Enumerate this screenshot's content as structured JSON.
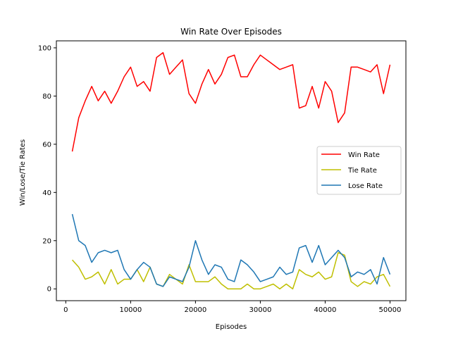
{
  "chart_data": {
    "type": "line",
    "title": "Win Rate Over Episodes",
    "xlabel": "Episodes",
    "ylabel": "Win/Lose/Tie Rates",
    "xlim": [
      -1450,
      52450
    ],
    "ylim": [
      -4.9,
      102.9
    ],
    "xticks": [
      0,
      10000,
      20000,
      30000,
      40000,
      50000
    ],
    "yticks": [
      0,
      20,
      40,
      60,
      80,
      100
    ],
    "grid": false,
    "legend_position": "center-right",
    "x": [
      1000,
      2000,
      3000,
      4000,
      5000,
      6000,
      7000,
      8000,
      9000,
      10000,
      11000,
      12000,
      13000,
      14000,
      15000,
      16000,
      17000,
      18000,
      19000,
      20000,
      21000,
      22000,
      23000,
      24000,
      25000,
      26000,
      27000,
      28000,
      29000,
      30000,
      31000,
      32000,
      33000,
      34000,
      35000,
      36000,
      37000,
      38000,
      39000,
      40000,
      41000,
      42000,
      43000,
      44000,
      45000,
      46000,
      47000,
      48000,
      49000,
      50000
    ],
    "series": [
      {
        "name": "Win Rate",
        "color": "#ff0000",
        "values": [
          57,
          71,
          78,
          84,
          78,
          82,
          77,
          82,
          88,
          92,
          84,
          86,
          82,
          96,
          98,
          89,
          92,
          95,
          81,
          77,
          85,
          91,
          85,
          89,
          96,
          97,
          88,
          88,
          93,
          97,
          95,
          93,
          91,
          92,
          93,
          75,
          76,
          84,
          75,
          86,
          82,
          69,
          73,
          92,
          92,
          91,
          90,
          93,
          81,
          93
        ]
      },
      {
        "name": "Tie Rate",
        "color": "#bfbf00",
        "values": [
          12,
          9,
          4,
          5,
          7,
          2,
          8,
          2,
          4,
          4,
          8,
          3,
          9,
          2,
          1,
          6,
          4,
          2,
          10,
          3,
          3,
          3,
          5,
          2,
          0,
          0,
          0,
          2,
          0,
          0,
          1,
          2,
          0,
          2,
          0,
          8,
          6,
          5,
          7,
          4,
          5,
          15,
          14,
          3,
          1,
          3,
          2,
          5,
          6,
          1
        ]
      },
      {
        "name": "Lose Rate",
        "color": "#1f77b4",
        "values": [
          31,
          20,
          18,
          11,
          15,
          16,
          15,
          16,
          8,
          4,
          8,
          11,
          9,
          2,
          1,
          5,
          4,
          3,
          9,
          20,
          12,
          6,
          10,
          9,
          4,
          3,
          12,
          10,
          7,
          3,
          4,
          5,
          9,
          6,
          7,
          17,
          18,
          11,
          18,
          10,
          13,
          16,
          13,
          5,
          7,
          6,
          8,
          2,
          13,
          6
        ]
      }
    ]
  }
}
